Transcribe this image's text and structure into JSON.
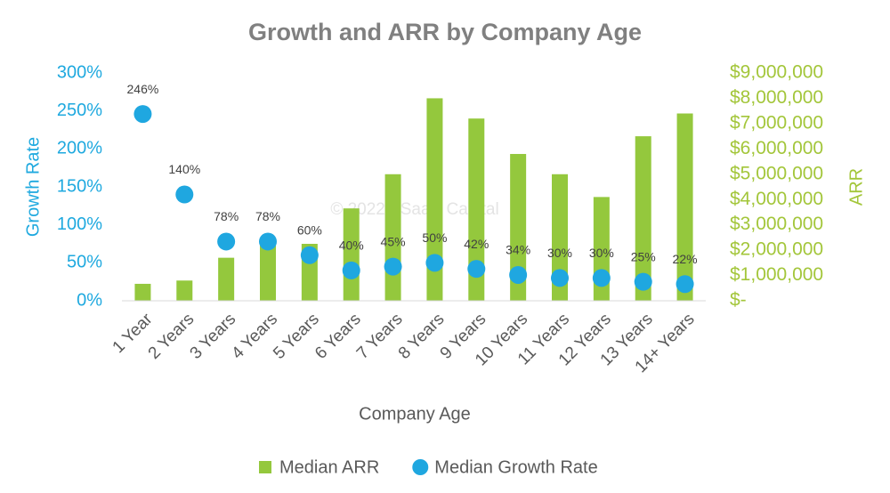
{
  "chart_data": {
    "type": "combo",
    "title": "Growth and ARR by Company Age",
    "watermark": "© 2022 - SaaS Capital",
    "x_label": "Company Age",
    "y_label": "Growth Rate",
    "y2_label": "ARR",
    "categories": [
      "1 Year",
      "2 Years",
      "3 Years",
      "4 Years",
      "5 Years",
      "6 Years",
      "7 Years",
      "8 Years",
      "9 Years",
      "10 Years",
      "11 Years",
      "12 Years",
      "13 Years",
      "14+ Years"
    ],
    "series": [
      {
        "name": "Median ARR",
        "type": "bar",
        "axis": "y2",
        "color": "#94c83d",
        "values": [
          670000,
          800000,
          1700000,
          2300000,
          2250000,
          3650000,
          5000000,
          8000000,
          7200000,
          5800000,
          5000000,
          4100000,
          6500000,
          7400000
        ]
      },
      {
        "name": "Median Growth Rate",
        "type": "scatter",
        "color": "#1fa7e0",
        "values": [
          246,
          140,
          78,
          78,
          60,
          40,
          45,
          50,
          42,
          34,
          30,
          30,
          25,
          22
        ],
        "value_labels": [
          "246%",
          "140%",
          "78%",
          "78%",
          "60%",
          "40%",
          "45%",
          "50%",
          "42%",
          "34%",
          "30%",
          "30%",
          "25%",
          "22%"
        ]
      }
    ],
    "ylim": [
      0,
      300
    ],
    "yticks": [
      {
        "value": 0,
        "label": "0%"
      },
      {
        "value": 50,
        "label": "50%"
      },
      {
        "value": 100,
        "label": "100%"
      },
      {
        "value": 150,
        "label": "150%"
      },
      {
        "value": 200,
        "label": "200%"
      },
      {
        "value": 250,
        "label": "250%"
      },
      {
        "value": 300,
        "label": "300%"
      }
    ],
    "y2lim": [
      0,
      9000000
    ],
    "y2ticks": [
      {
        "value": 0,
        "label": "$-"
      },
      {
        "value": 1000000,
        "label": "$1,000,000"
      },
      {
        "value": 2000000,
        "label": "$2,000,000"
      },
      {
        "value": 3000000,
        "label": "$3,000,000"
      },
      {
        "value": 4000000,
        "label": "$4,000,000"
      },
      {
        "value": 5000000,
        "label": "$5,000,000"
      },
      {
        "value": 6000000,
        "label": "$6,000,000"
      },
      {
        "value": 7000000,
        "label": "$7,000,000"
      },
      {
        "value": 8000000,
        "label": "$8,000,000"
      },
      {
        "value": 9000000,
        "label": "$9,000,000"
      }
    ],
    "y_color": "#1fa9df",
    "y2_color": "#a3c63a",
    "grid": false,
    "legend": "bottom"
  }
}
